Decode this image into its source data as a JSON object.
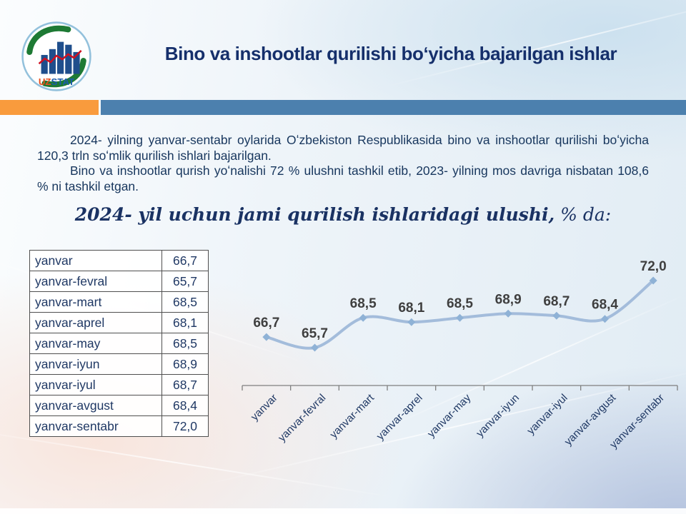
{
  "header": {
    "title": "Bino va inshootlar qurilishi boʻyicha bajarilgan ishlar",
    "logo": {
      "uz": "UZ",
      "stat": "STAT"
    }
  },
  "divider": {
    "orange_color": "#F99B3D",
    "blue_color": "#4C80AE"
  },
  "intro": {
    "paragraph1": "2024- yilning yanvar-sentabr oylarida Oʻzbekiston Respublikasida bino va inshootlar qurilishi boʻyicha 120,3 trln soʻmlik qurilish ishlari bajarilgan.",
    "paragraph2": "Bino va inshootlar qurish yoʻnalishi 72 % ulushni tashkil etib, 2023- yilning mos davriga nisbatan 108,6 % ni tashkil etgan."
  },
  "section_title": {
    "main": "2024- yil uchun jami qurilish ishlaridagi ulushi,",
    "suffix": " % da:"
  },
  "table": {
    "rows": [
      {
        "label": "yanvar",
        "value": "66,7"
      },
      {
        "label": "yanvar-fevral",
        "value": "65,7"
      },
      {
        "label": "yanvar-mart",
        "value": "68,5"
      },
      {
        "label": "yanvar-aprel",
        "value": "68,1"
      },
      {
        "label": "yanvar-may",
        "value": "68,5"
      },
      {
        "label": "yanvar-iyun",
        "value": "68,9"
      },
      {
        "label": "yanvar-iyul",
        "value": "68,7"
      },
      {
        "label": "yanvar-avgust",
        "value": "68,4"
      },
      {
        "label": "yanvar-sentabr",
        "value": "72,0"
      }
    ]
  },
  "chart_data": {
    "type": "line",
    "title": "2024- yil uchun jami qurilish ishlaridagi ulushi, % da:",
    "categories": [
      "yanvar",
      "yanvar-fevral",
      "yanvar-mart",
      "yanvar-aprel",
      "yanvar-may",
      "yanvar-iyun",
      "yanvar-iyul",
      "yanvar-avgust",
      "yanvar-sentabr"
    ],
    "values": [
      66.7,
      65.7,
      68.5,
      68.1,
      68.5,
      68.9,
      68.7,
      68.4,
      72.0
    ],
    "value_labels": [
      "66,7",
      "65,7",
      "68,5",
      "68,1",
      "68,5",
      "68,9",
      "68,7",
      "68,4",
      "72,0"
    ],
    "ylim": [
      64,
      74
    ],
    "grid": false,
    "legend": "none",
    "marker": "diamond",
    "line_color": "#a3bcdb",
    "marker_color": "#8fb2d6",
    "label_color": "#3f3f3f",
    "axis_color": "#7f7f7f",
    "category_label_color": "#1f3864"
  }
}
